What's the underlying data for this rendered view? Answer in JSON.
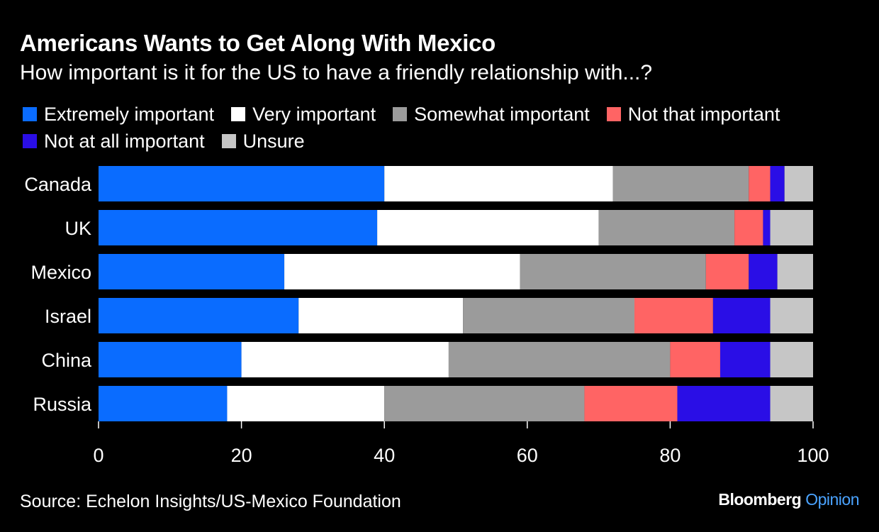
{
  "title": "Americans Wants to Get Along With Mexico",
  "subtitle": "How important is it for the US to have a friendly relationship with...?",
  "source": "Source: Echelon Insights/US-Mexico Foundation",
  "brand": {
    "name": "Bloomberg",
    "section": "Opinion"
  },
  "colors": {
    "background": "#000000",
    "accent_blue": "#4aa3ff"
  },
  "chart_data": {
    "type": "bar",
    "orientation": "horizontal",
    "stacked": true,
    "categories": [
      "Canada",
      "UK",
      "Mexico",
      "Israel",
      "China",
      "Russia"
    ],
    "series": [
      {
        "name": "Extremely important",
        "color": "#0a6cff",
        "values": [
          40,
          39,
          26,
          28,
          20,
          18
        ]
      },
      {
        "name": "Very important",
        "color": "#ffffff",
        "values": [
          32,
          31,
          33,
          23,
          29,
          22
        ]
      },
      {
        "name": "Somewhat important",
        "color": "#9b9b9b",
        "values": [
          19,
          19,
          26,
          24,
          31,
          28
        ]
      },
      {
        "name": "Not that important",
        "color": "#ff6464",
        "values": [
          3,
          4,
          6,
          11,
          7,
          13
        ]
      },
      {
        "name": "Not at all important",
        "color": "#2a0ee6",
        "values": [
          2,
          1,
          4,
          8,
          7,
          13
        ]
      },
      {
        "name": "Unsure",
        "color": "#c6c6c6",
        "values": [
          4,
          6,
          5,
          6,
          6,
          6
        ]
      }
    ],
    "x_ticks": [
      "0",
      "20",
      "40",
      "60",
      "80",
      "100"
    ],
    "xlim": [
      0,
      100
    ],
    "xlabel": "",
    "ylabel": "",
    "grid": false,
    "legend": "top"
  }
}
